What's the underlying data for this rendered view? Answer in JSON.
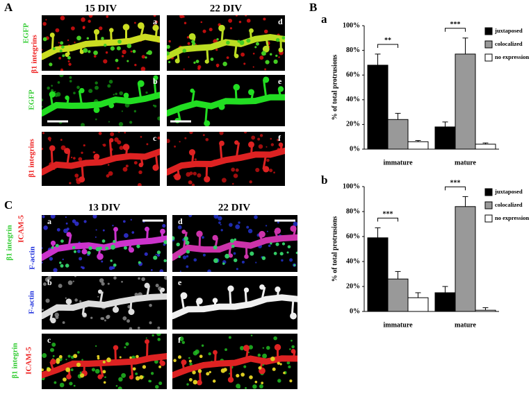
{
  "figure": {
    "panel_A": {
      "label": "A",
      "columns": [
        "15 DIV",
        "22 DIV"
      ],
      "sublabels": [
        "a",
        "b",
        "c",
        "d",
        "e",
        "f"
      ],
      "rows": [
        [
          "EGFP",
          "β1 integrins"
        ],
        [
          "EGFP"
        ],
        [
          "β1 integrins"
        ]
      ]
    },
    "panel_B": {
      "label": "B"
    },
    "panel_C": {
      "label": "C",
      "columns": [
        "13 DIV",
        "22 DIV"
      ],
      "sublabels": [
        "a",
        "b",
        "c",
        "d",
        "e",
        "f"
      ],
      "rows": [
        [
          "β1 integrin",
          "ICAM-5",
          "F-actin"
        ],
        [
          "F-actin"
        ],
        [
          "β1 integrin",
          "ICAM-5"
        ]
      ]
    }
  },
  "chart_data": [
    {
      "type": "bar",
      "panel_label": "a",
      "y_label": "% of total protrusions",
      "categories": [
        "immature",
        "mature"
      ],
      "series": [
        {
          "name": "juxtaposed",
          "color": "#000000",
          "values": [
            68,
            18
          ],
          "errors": [
            9,
            4
          ]
        },
        {
          "name": "colocalized",
          "color": "#999999",
          "values": [
            24,
            77
          ],
          "errors": [
            5,
            13
          ]
        },
        {
          "name": "no expression",
          "color": "#ffffff",
          "values": [
            6,
            4
          ],
          "errors": [
            1,
            1
          ]
        }
      ],
      "significance": [
        "**",
        "***"
      ],
      "ylim": [
        0,
        100
      ],
      "yticks": [
        {
          "value": 0,
          "label": "0%"
        },
        {
          "value": 20,
          "label": "20%"
        },
        {
          "value": 40,
          "label": "40%"
        },
        {
          "value": 60,
          "label": "60%"
        },
        {
          "value": 80,
          "label": "80%"
        },
        {
          "value": 100,
          "label": "100%"
        }
      ],
      "legend": "upper right"
    },
    {
      "type": "bar",
      "panel_label": "b",
      "y_label": "% of total protrusions",
      "categories": [
        "immature",
        "mature"
      ],
      "series": [
        {
          "name": "juxtaposed",
          "color": "#000000",
          "values": [
            59,
            15
          ],
          "errors": [
            8,
            5
          ]
        },
        {
          "name": "colocalized",
          "color": "#999999",
          "values": [
            26,
            84
          ],
          "errors": [
            6,
            8
          ]
        },
        {
          "name": "no expression",
          "color": "#ffffff",
          "values": [
            11,
            1
          ],
          "errors": [
            4,
            2
          ]
        }
      ],
      "significance": [
        "***",
        "***"
      ],
      "ylim": [
        0,
        100
      ],
      "yticks": [
        {
          "value": 0,
          "label": "0%"
        },
        {
          "value": 20,
          "label": "20%"
        },
        {
          "value": 40,
          "label": "40%"
        },
        {
          "value": 60,
          "label": "60%"
        },
        {
          "value": 80,
          "label": "80%"
        },
        {
          "value": 100,
          "label": "100%"
        }
      ],
      "legend": "upper right"
    }
  ]
}
